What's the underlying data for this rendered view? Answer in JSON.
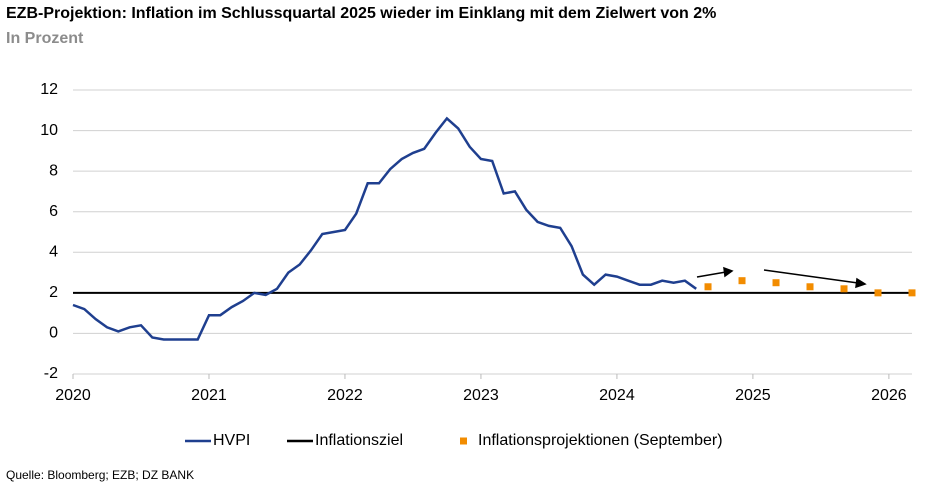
{
  "chart_data": {
    "type": "line",
    "title": "EZB-Projektion: Inflation im Schlussquartal 2025 wieder im Einklang mit dem Zielwert von 2%",
    "subtitle": "In Prozent",
    "source": "Quelle: Bloomberg; EZB; DZ BANK",
    "xlim": [
      2020,
      2026.17
    ],
    "xticks": [
      2020,
      2021,
      2022,
      2023,
      2024,
      2025,
      2026
    ],
    "ylim": [
      -2,
      12
    ],
    "yticks": [
      -2,
      0,
      2,
      4,
      6,
      8,
      10,
      12
    ],
    "grid": true,
    "series": [
      {
        "name": "HVPI",
        "color": "#1f3f8f",
        "style": "line",
        "x": [
          2020,
          2020.083,
          2020.167,
          2020.25,
          2020.333,
          2020.417,
          2020.5,
          2020.583,
          2020.667,
          2020.75,
          2020.833,
          2020.917,
          2021,
          2021.083,
          2021.167,
          2021.25,
          2021.333,
          2021.417,
          2021.5,
          2021.583,
          2021.667,
          2021.75,
          2021.833,
          2021.917,
          2022,
          2022.083,
          2022.167,
          2022.25,
          2022.333,
          2022.417,
          2022.5,
          2022.583,
          2022.667,
          2022.75,
          2022.833,
          2022.917,
          2023,
          2023.083,
          2023.167,
          2023.25,
          2023.333,
          2023.417,
          2023.5,
          2023.583,
          2023.667,
          2023.75,
          2023.833,
          2023.917,
          2024,
          2024.083,
          2024.167,
          2024.25,
          2024.333,
          2024.417,
          2024.5,
          2024.583
        ],
        "values": [
          1.4,
          1.2,
          0.7,
          0.3,
          0.1,
          0.3,
          0.4,
          -0.2,
          -0.3,
          -0.3,
          -0.3,
          -0.3,
          0.9,
          0.9,
          1.3,
          1.6,
          2.0,
          1.9,
          2.2,
          3.0,
          3.4,
          4.1,
          4.9,
          5.0,
          5.1,
          5.9,
          7.4,
          7.4,
          8.1,
          8.6,
          8.9,
          9.1,
          9.9,
          10.6,
          10.1,
          9.2,
          8.6,
          8.5,
          6.9,
          7.0,
          6.1,
          5.5,
          5.3,
          5.2,
          4.3,
          2.9,
          2.4,
          2.9,
          2.8,
          2.6,
          2.4,
          2.4,
          2.6,
          2.5,
          2.6,
          2.2
        ]
      },
      {
        "name": "Inflationsziel",
        "color": "#000000",
        "style": "line",
        "x": [
          2020,
          2026.17
        ],
        "values": [
          2,
          2
        ]
      },
      {
        "name": "Inflationsprojektionen (September)",
        "color": "#f28c00",
        "style": "marker",
        "x": [
          2024.67,
          2024.92,
          2025.17,
          2025.42,
          2025.67,
          2025.92,
          2026.17
        ],
        "values": [
          2.3,
          2.6,
          2.5,
          2.3,
          2.2,
          2.0,
          2.0
        ]
      }
    ]
  }
}
